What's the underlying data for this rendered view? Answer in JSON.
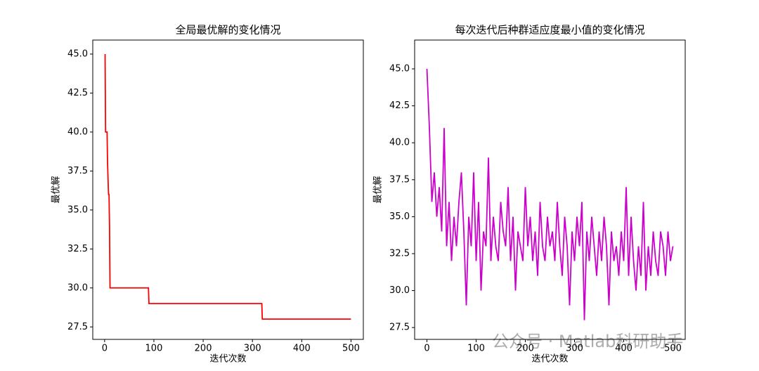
{
  "chart_data": [
    {
      "type": "line",
      "title": "全局最优解的变化情况",
      "xlabel": "迭代次数",
      "ylabel": "最优解",
      "series": [
        {
          "color": "#ff0000",
          "x": [
            1,
            2,
            5,
            6,
            7,
            8,
            9,
            10,
            11,
            89,
            90,
            319,
            320,
            500
          ],
          "values": [
            45,
            40,
            40,
            38,
            37,
            36,
            36,
            34,
            30,
            30,
            29,
            29,
            28,
            28
          ]
        }
      ],
      "xlim": [
        -24,
        525
      ],
      "xticks": [
        0,
        100,
        200,
        300,
        400,
        500
      ],
      "ylim": [
        26.7,
        45.9
      ],
      "yticks": [
        27.5,
        {
          "value": 30,
          "label": "30.0"
        },
        32.5,
        {
          "value": 35,
          "label": "35.0"
        },
        37.5,
        {
          "value": 40,
          "label": "40.0"
        },
        42.5,
        {
          "value": 45,
          "label": "45.0"
        }
      ]
    },
    {
      "type": "line",
      "title": "每次迭代后种群适应度最小值的变化情况",
      "xlabel": "迭代次数",
      "ylabel": "最优解",
      "series": [
        {
          "color": "#cc00cc",
          "x": [
            0,
            5,
            10,
            15,
            20,
            25,
            30,
            35,
            40,
            45,
            50,
            55,
            60,
            65,
            70,
            75,
            80,
            85,
            90,
            95,
            100,
            105,
            110,
            115,
            120,
            125,
            130,
            135,
            140,
            145,
            150,
            155,
            160,
            165,
            170,
            175,
            180,
            185,
            190,
            195,
            200,
            205,
            210,
            215,
            220,
            225,
            230,
            235,
            240,
            245,
            250,
            255,
            260,
            265,
            270,
            275,
            280,
            285,
            290,
            295,
            300,
            305,
            310,
            315,
            320,
            325,
            330,
            335,
            340,
            345,
            350,
            355,
            360,
            365,
            370,
            375,
            380,
            385,
            390,
            395,
            400,
            405,
            410,
            415,
            420,
            425,
            430,
            435,
            440,
            445,
            450,
            455,
            460,
            465,
            470,
            475,
            480,
            485,
            490,
            495,
            500
          ],
          "values": [
            45,
            41,
            36,
            38,
            35,
            37,
            34,
            41,
            33,
            36,
            32,
            35,
            33,
            36,
            38,
            34,
            29,
            35,
            33,
            38,
            32,
            36,
            30,
            34,
            33,
            39,
            32,
            35,
            33,
            32,
            36,
            34,
            33,
            37,
            32,
            35,
            30,
            34,
            33,
            32,
            37,
            33,
            35,
            32,
            34,
            31,
            36,
            33,
            32,
            35,
            33,
            34,
            32,
            36,
            33,
            31,
            35,
            33,
            29,
            34,
            32,
            35,
            33,
            36,
            28,
            34,
            32,
            35,
            33,
            31,
            34,
            32,
            35,
            33,
            29,
            34,
            32,
            33,
            31,
            34,
            32,
            37,
            31,
            35,
            32,
            30,
            33,
            31,
            36,
            30,
            33,
            31,
            34,
            32,
            31,
            34,
            33,
            31,
            34,
            32,
            33
          ]
        }
      ],
      "xlim": [
        -25,
        525
      ],
      "xticks": [
        0,
        100,
        200,
        300,
        400,
        500
      ],
      "ylim": [
        26.7,
        46.95
      ],
      "yticks": [
        27.5,
        {
          "value": 30,
          "label": "30.0"
        },
        32.5,
        {
          "value": 35,
          "label": "35.0"
        },
        37.5,
        {
          "value": 40,
          "label": "40.0"
        },
        42.5,
        {
          "value": 45,
          "label": "45.0"
        }
      ]
    }
  ],
  "watermark": "公众号 · Matlab科研助手"
}
